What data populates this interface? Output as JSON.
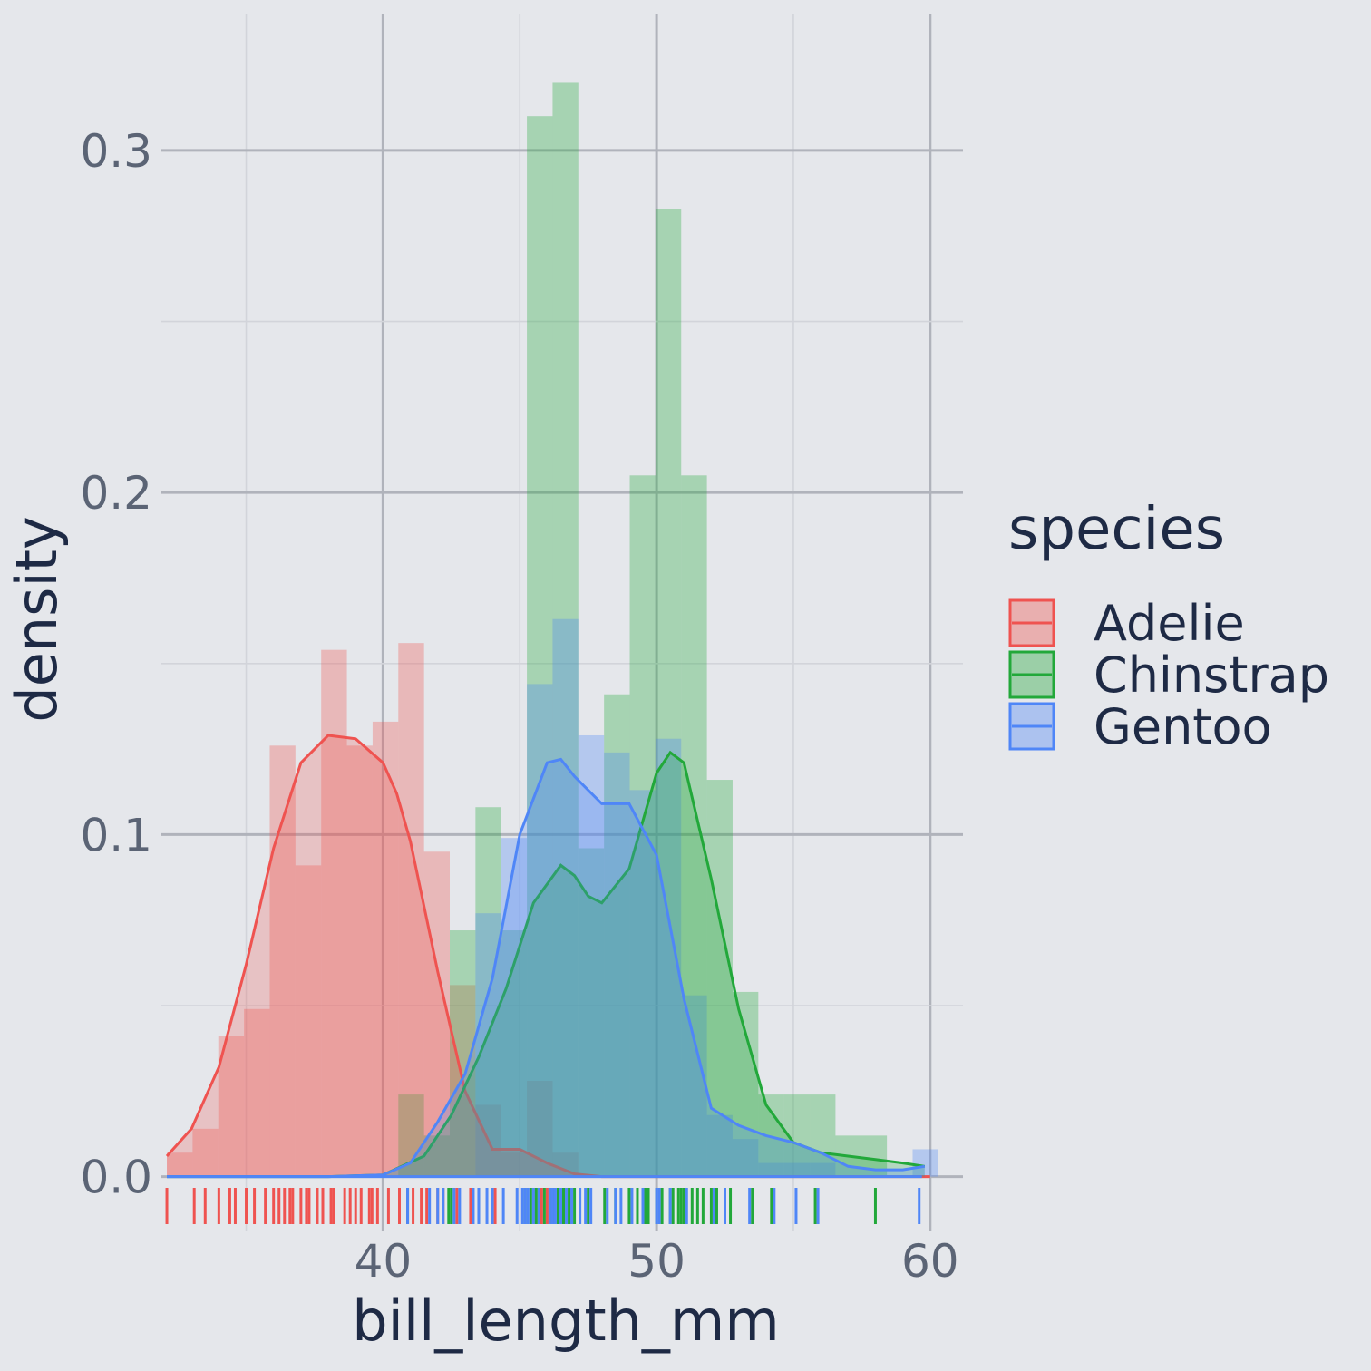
{
  "chart_data": {
    "type": "histogram-density-rug",
    "xlabel": "bill_length_mm",
    "ylabel": "density",
    "xlim": [
      31.9,
      61.2
    ],
    "ylim": [
      -0.016,
      0.34
    ],
    "x_ticks": [
      40,
      50,
      60
    ],
    "x_tick_labels": [
      "40",
      "50",
      "60"
    ],
    "y_ticks": [
      0.0,
      0.1,
      0.2,
      0.3
    ],
    "y_tick_labels": [
      "0.0",
      "0.1",
      "0.2",
      "0.3"
    ],
    "grid": true,
    "legend": {
      "title": "species",
      "position": "right"
    },
    "bin_edges": [
      32.1,
      33.04,
      33.98,
      34.92,
      35.86,
      36.8,
      37.74,
      38.68,
      39.62,
      40.56,
      41.5,
      42.44,
      43.38,
      44.32,
      45.26,
      46.2,
      47.14,
      48.08,
      49.02,
      49.96,
      50.9,
      51.84,
      52.78,
      53.72,
      54.66,
      55.6,
      56.54,
      57.48,
      58.42,
      59.36,
      60.3
    ],
    "series": [
      {
        "name": "Adelie",
        "color": "#ef5350",
        "histogram": [
          0.007,
          0.014,
          0.041,
          0.049,
          0.126,
          0.091,
          0.154,
          0.126,
          0.133,
          0.156,
          0.095,
          0.056,
          0.021,
          0.007,
          0.028,
          0.007,
          0,
          0,
          0,
          0,
          0,
          0,
          0,
          0,
          0,
          0,
          0,
          0,
          0,
          0
        ],
        "density_x": [
          32.1,
          33,
          34,
          35,
          36,
          37,
          38,
          39,
          40,
          40.5,
          41,
          42,
          43,
          44,
          45,
          46,
          47,
          48,
          60
        ],
        "density_y": [
          0.006,
          0.014,
          0.032,
          0.062,
          0.096,
          0.121,
          0.129,
          0.128,
          0.121,
          0.112,
          0.098,
          0.06,
          0.025,
          0.008,
          0.008,
          0.004,
          0.0008,
          0,
          0
        ],
        "rug": [
          32.1,
          33.1,
          33.5,
          34.0,
          34.4,
          34.6,
          35.0,
          35.3,
          35.7,
          36.0,
          36.2,
          36.4,
          36.6,
          36.7,
          37.0,
          37.2,
          37.3,
          37.6,
          37.8,
          38.1,
          38.2,
          38.6,
          38.8,
          39.0,
          39.2,
          39.5,
          39.6,
          39.8,
          40.2,
          40.6,
          40.9,
          41.1,
          41.4,
          41.6,
          42.0,
          42.2,
          42.7,
          43.2,
          44.1,
          45.8,
          46.0
        ]
      },
      {
        "name": "Chinstrap",
        "color": "#22a83a",
        "histogram": [
          0,
          0,
          0,
          0,
          0,
          0,
          0,
          0,
          0,
          0.024,
          0.012,
          0.072,
          0.108,
          0.072,
          0.31,
          0.32,
          0.096,
          0.141,
          0.205,
          0.283,
          0.205,
          0.116,
          0.054,
          0.024,
          0.024,
          0.024,
          0.012,
          0.012,
          0,
          0
        ],
        "density_x": [
          32.1,
          38,
          40,
          41.5,
          42.5,
          43.5,
          44.5,
          45.5,
          46.5,
          47,
          47.5,
          48,
          49,
          50,
          50.5,
          51,
          52,
          53,
          54,
          55,
          56,
          57,
          58,
          59,
          59.8
        ],
        "density_y": [
          0,
          0,
          0.0005,
          0.006,
          0.018,
          0.035,
          0.055,
          0.08,
          0.091,
          0.088,
          0.082,
          0.08,
          0.09,
          0.118,
          0.124,
          0.121,
          0.087,
          0.049,
          0.021,
          0.01,
          0.007,
          0.006,
          0.005,
          0.004,
          0.003
        ],
        "rug": [
          40.9,
          42.4,
          42.5,
          43.5,
          45.2,
          45.4,
          45.5,
          45.6,
          45.7,
          45.9,
          46.1,
          46.2,
          46.4,
          46.5,
          46.6,
          46.8,
          46.9,
          47.0,
          47.5,
          48.1,
          48.5,
          49.0,
          49.3,
          49.6,
          49.7,
          50.0,
          50.2,
          50.5,
          50.6,
          50.8,
          50.9,
          51.0,
          51.3,
          51.5,
          51.7,
          52.0,
          52.2,
          52.7,
          53.5,
          54.2,
          55.8,
          58.0
        ]
      },
      {
        "name": "Gentoo",
        "color": "#4f86f7",
        "histogram": [
          0,
          0,
          0,
          0,
          0,
          0,
          0,
          0,
          0,
          0,
          0.0,
          0.0,
          0.077,
          0.099,
          0.144,
          0.163,
          0.129,
          0.124,
          0.113,
          0.128,
          0.053,
          0.018,
          0.011,
          0.004,
          0.004,
          0.004,
          0,
          0.0,
          0,
          0.008
        ],
        "density_x": [
          32.1,
          38,
          40,
          41,
          42,
          43,
          44,
          45,
          46,
          46.5,
          47,
          48,
          49,
          50,
          51,
          52,
          53,
          54,
          55,
          56,
          57,
          58,
          59,
          59.8
        ],
        "density_y": [
          0,
          0,
          0.0005,
          0.004,
          0.016,
          0.03,
          0.058,
          0.1,
          0.121,
          0.122,
          0.117,
          0.109,
          0.109,
          0.094,
          0.052,
          0.02,
          0.015,
          0.012,
          0.01,
          0.007,
          0.003,
          0.002,
          0.002,
          0.003
        ],
        "rug": [
          40.9,
          41.7,
          42.0,
          42.2,
          42.6,
          42.8,
          43.3,
          43.5,
          43.8,
          44.0,
          44.4,
          44.9,
          45.1,
          45.2,
          45.3,
          45.5,
          45.7,
          46.1,
          46.2,
          46.3,
          46.5,
          46.7,
          46.9,
          47.2,
          47.4,
          47.6,
          48.2,
          48.5,
          48.7,
          49.1,
          49.5,
          50.0,
          50.1,
          50.5,
          51.1,
          52.1,
          52.5,
          53.4,
          54.3,
          55.1,
          55.9,
          59.6
        ]
      }
    ]
  }
}
